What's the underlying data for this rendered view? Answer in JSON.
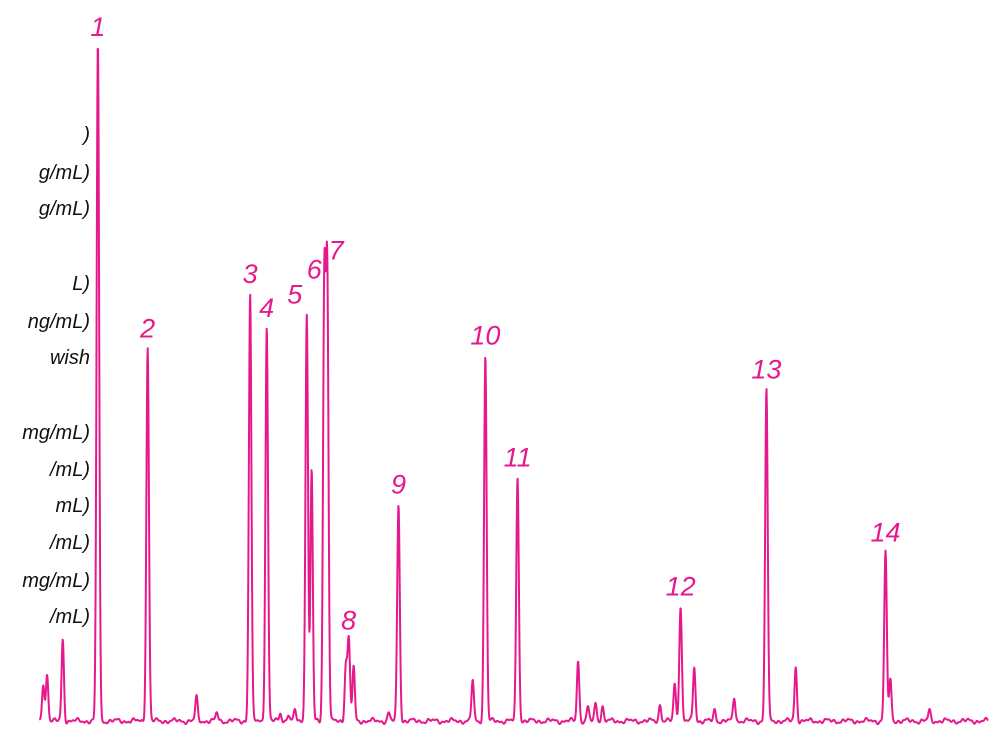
{
  "chart_data": {
    "type": "line",
    "title": "",
    "xlabel": "",
    "ylabel": "",
    "line_color": "#e6198c",
    "label_color": "#e6198c",
    "xlim": [
      0,
      100
    ],
    "ylim": [
      0,
      100
    ],
    "peaks": [
      {
        "label": "1",
        "x": 8.8,
        "y": 100
      },
      {
        "label": "2",
        "x": 13.9,
        "y": 55
      },
      {
        "label": "3",
        "x": 24.4,
        "y": 63
      },
      {
        "label": "4",
        "x": 26.1,
        "y": 58
      },
      {
        "label": "5",
        "x": 30.2,
        "y": 60
      },
      {
        "label": "6",
        "x": 32.0,
        "y": 64
      },
      {
        "label": "7",
        "x": 32.3,
        "y": 65
      },
      {
        "label": "8",
        "x": 34.5,
        "y": 12
      },
      {
        "label": "9",
        "x": 39.6,
        "y": 32
      },
      {
        "label": "10",
        "x": 48.5,
        "y": 54
      },
      {
        "label": "11",
        "x": 51.8,
        "y": 36
      },
      {
        "label": "12",
        "x": 68.5,
        "y": 17
      },
      {
        "label": "13",
        "x": 77.3,
        "y": 49
      },
      {
        "label": "14",
        "x": 89.5,
        "y": 25
      }
    ],
    "minor_peaks": [
      {
        "x": 3.2,
        "y": 5.5
      },
      {
        "x": 3.6,
        "y": 7
      },
      {
        "x": 5.2,
        "y": 12
      },
      {
        "x": 18.9,
        "y": 3.5
      },
      {
        "x": 21.0,
        "y": 1.2
      },
      {
        "x": 27.5,
        "y": 1.2
      },
      {
        "x": 28.3,
        "y": 1.0
      },
      {
        "x": 29.0,
        "y": 1.5
      },
      {
        "x": 30.7,
        "y": 37
      },
      {
        "x": 34.2,
        "y": 8
      },
      {
        "x": 35.0,
        "y": 8
      },
      {
        "x": 38.6,
        "y": 1.2
      },
      {
        "x": 47.2,
        "y": 6
      },
      {
        "x": 58.0,
        "y": 9
      },
      {
        "x": 59.0,
        "y": 2
      },
      {
        "x": 59.8,
        "y": 2.6
      },
      {
        "x": 60.5,
        "y": 2.2
      },
      {
        "x": 66.4,
        "y": 2.5
      },
      {
        "x": 67.9,
        "y": 5.5
      },
      {
        "x": 69.9,
        "y": 8
      },
      {
        "x": 72.0,
        "y": 1.6
      },
      {
        "x": 74.0,
        "y": 3.5
      },
      {
        "x": 80.3,
        "y": 8
      },
      {
        "x": 90.0,
        "y": 6
      },
      {
        "x": 94.0,
        "y": 1.5
      }
    ]
  },
  "legend": {
    "lines": [
      ")",
      "g/mL)",
      "g/mL)",
      "",
      "L)",
      "ng/mL)",
      "wish",
      "",
      "mg/mL)",
      "/mL)",
      "mL)",
      "/mL)",
      "mg/mL)",
      "/mL)"
    ]
  }
}
